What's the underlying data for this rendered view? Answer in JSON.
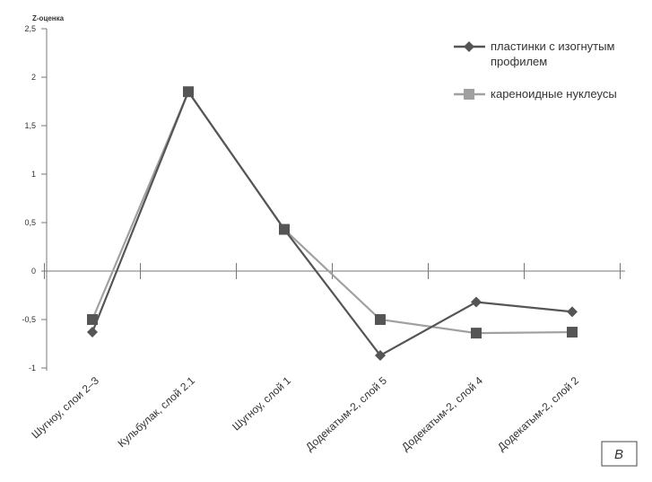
{
  "chart_data": {
    "type": "line",
    "ylabel": "Z-оценка",
    "categories": [
      "Шугноу, слои 2–3",
      "Кульбулак, слой 2.1",
      "Шугноу, слой 1",
      "Додекатым-2, слой 5",
      "Додекатым-2, слой 4",
      "Додекатым-2, слой 2"
    ],
    "yticks": [
      "2,5",
      "2",
      "1,5",
      "1",
      "0,5",
      "0",
      "-0,5",
      "-1"
    ],
    "ylim": [
      -1,
      2.5
    ],
    "series": [
      {
        "name": "пластинки с изогнутым профилем",
        "name_lines": [
          "пластинки с изогнутым",
          "профилем"
        ],
        "marker": "diamond",
        "color": "#555555",
        "values": [
          -0.63,
          1.85,
          0.43,
          -0.87,
          -0.32,
          -0.42
        ]
      },
      {
        "name": "кареноидные нуклеусы",
        "name_lines": [
          "кареноидные нуклеусы"
        ],
        "marker": "square",
        "color": "#a0a0a0",
        "values": [
          -0.5,
          1.85,
          0.43,
          -0.5,
          -0.64,
          -0.63
        ]
      }
    ],
    "legend_position": "top-right",
    "grid": false,
    "panel_label": "В"
  }
}
